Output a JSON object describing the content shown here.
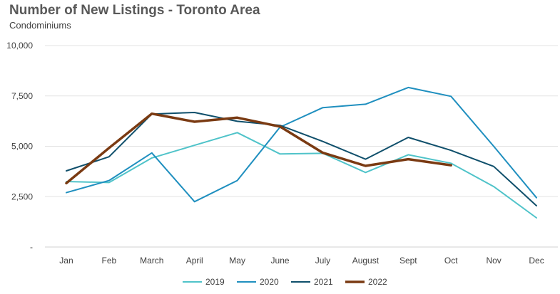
{
  "chart_data": {
    "type": "line",
    "title": "Number of New Listings - Toronto Area",
    "subtitle": "Condominiums",
    "xlabel": "",
    "ylabel": "",
    "categories": [
      "Jan",
      "Feb",
      "March",
      "April",
      "May",
      "June",
      "July",
      "August",
      "Sept",
      "Oct",
      "Nov",
      "Dec"
    ],
    "ylim": [
      0,
      10000
    ],
    "yticks": [
      {
        "value": 0,
        "label": "-"
      },
      {
        "value": 2500,
        "label": "2,500"
      },
      {
        "value": 5000,
        "label": "5,000"
      },
      {
        "value": 7500,
        "label": "7,500"
      },
      {
        "value": 10000,
        "label": "10,000"
      }
    ],
    "grid": true,
    "legend_position": "bottom",
    "series": [
      {
        "name": "2019",
        "color": "#4fc3c9",
        "width": 2,
        "values": [
          3250,
          3200,
          4420,
          5050,
          5680,
          4620,
          4650,
          3700,
          4580,
          4160,
          3000,
          1450
        ]
      },
      {
        "name": "2020",
        "color": "#1f8fbf",
        "width": 2,
        "values": [
          2700,
          3300,
          4670,
          2250,
          3300,
          5950,
          6920,
          7090,
          7920,
          7480,
          5000,
          2450
        ]
      },
      {
        "name": "2021",
        "color": "#0f4f6b",
        "width": 2,
        "values": [
          3780,
          4480,
          6600,
          6680,
          6240,
          6040,
          5240,
          4360,
          5440,
          4800,
          4000,
          2050
        ]
      },
      {
        "name": "2022",
        "color": "#7a3a12",
        "width": 3.5,
        "values": [
          3170,
          4920,
          6620,
          6220,
          6420,
          5980,
          4680,
          4030,
          4360,
          4060,
          null,
          null
        ]
      }
    ]
  }
}
